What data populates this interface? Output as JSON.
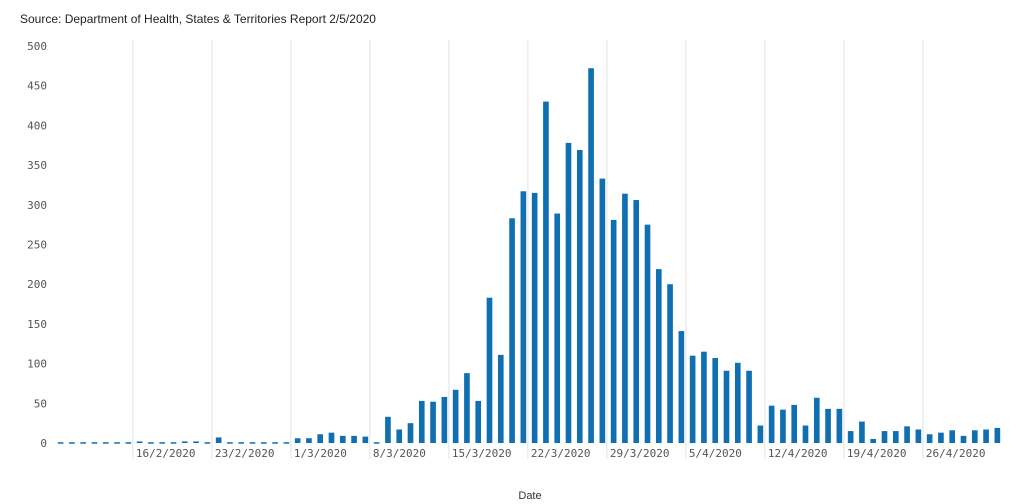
{
  "source_text": "Source: Department of Health, States & Territories Report 2/5/2020",
  "chart_data": {
    "type": "bar",
    "title": "",
    "xlabel": "Date",
    "ylabel": "",
    "ylim": [
      0,
      500
    ],
    "yticks": [
      0,
      50,
      100,
      150,
      200,
      250,
      300,
      350,
      400,
      450,
      500
    ],
    "grid": "vertical lines at labeled dates",
    "bar_color": "#0f6fb0",
    "x_tick_labels": [
      "16/2/2020",
      "23/2/2020",
      "1/3/2020",
      "8/3/2020",
      "15/3/2020",
      "22/3/2020",
      "29/3/2020",
      "5/4/2020",
      "12/4/2020",
      "19/4/2020",
      "26/4/2020"
    ],
    "categories": [
      "9/2/2020",
      "10/2/2020",
      "11/2/2020",
      "12/2/2020",
      "13/2/2020",
      "14/2/2020",
      "15/2/2020",
      "16/2/2020",
      "17/2/2020",
      "18/2/2020",
      "19/2/2020",
      "20/2/2020",
      "21/2/2020",
      "22/2/2020",
      "23/2/2020",
      "24/2/2020",
      "25/2/2020",
      "26/2/2020",
      "27/2/2020",
      "28/2/2020",
      "29/2/2020",
      "1/3/2020",
      "2/3/2020",
      "3/3/2020",
      "4/3/2020",
      "5/3/2020",
      "6/3/2020",
      "7/3/2020",
      "8/3/2020",
      "9/3/2020",
      "10/3/2020",
      "11/3/2020",
      "12/3/2020",
      "13/3/2020",
      "14/3/2020",
      "15/3/2020",
      "16/3/2020",
      "17/3/2020",
      "18/3/2020",
      "19/3/2020",
      "20/3/2020",
      "21/3/2020",
      "22/3/2020",
      "23/3/2020",
      "24/3/2020",
      "25/3/2020",
      "26/3/2020",
      "27/3/2020",
      "28/3/2020",
      "29/3/2020",
      "30/3/2020",
      "31/3/2020",
      "1/4/2020",
      "2/4/2020",
      "3/4/2020",
      "4/4/2020",
      "5/4/2020",
      "6/4/2020",
      "7/4/2020",
      "8/4/2020",
      "9/4/2020",
      "10/4/2020",
      "11/4/2020",
      "12/4/2020",
      "13/4/2020",
      "14/4/2020",
      "15/4/2020",
      "16/4/2020",
      "17/4/2020",
      "18/4/2020",
      "19/4/2020",
      "20/4/2020",
      "21/4/2020",
      "22/4/2020",
      "23/4/2020",
      "24/4/2020",
      "25/4/2020",
      "26/4/2020",
      "27/4/2020",
      "28/4/2020",
      "29/4/2020",
      "30/4/2020",
      "1/5/2020",
      "2/5/2020"
    ],
    "values": [
      1,
      1,
      1,
      1,
      1,
      1,
      1,
      2,
      1,
      1,
      1,
      2,
      2,
      1,
      7,
      1,
      1,
      1,
      1,
      1,
      1,
      6,
      6,
      11,
      13,
      9,
      9,
      8,
      1,
      33,
      17,
      25,
      53,
      52,
      58,
      67,
      88,
      53,
      183,
      111,
      283,
      317,
      315,
      430,
      289,
      378,
      369,
      472,
      333,
      281,
      314,
      306,
      275,
      219,
      200,
      141,
      110,
      115,
      107,
      91,
      101,
      91,
      22,
      47,
      42,
      48,
      22,
      57,
      43,
      43,
      15,
      27,
      5,
      15,
      15,
      21,
      17,
      11,
      13,
      16,
      9,
      16,
      17,
      19
    ]
  }
}
